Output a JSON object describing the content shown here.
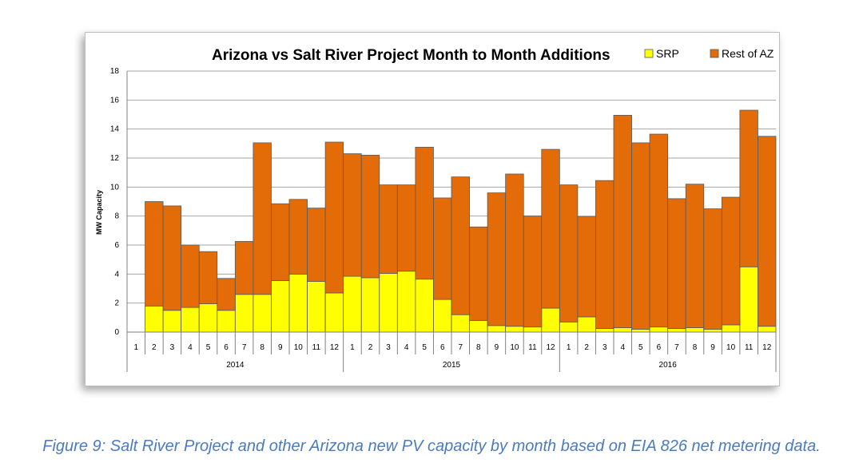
{
  "chart_data": {
    "type": "bar",
    "stacked": true,
    "title": "Arizona vs Salt River Project Month to Month Additions",
    "ylabel": "MW Capacity",
    "xlabel": "",
    "ylim": [
      0,
      18
    ],
    "yticks": [
      0,
      2,
      4,
      6,
      8,
      10,
      12,
      14,
      16,
      18
    ],
    "grid": "horizontal",
    "legend": "top-right",
    "years": [
      "2014",
      "2015",
      "2016"
    ],
    "categories": [
      "1",
      "2",
      "3",
      "4",
      "5",
      "6",
      "7",
      "8",
      "9",
      "10",
      "11",
      "12",
      "1",
      "2",
      "3",
      "4",
      "5",
      "6",
      "7",
      "8",
      "9",
      "10",
      "11",
      "12",
      "1",
      "2",
      "3",
      "4",
      "5",
      "6",
      "7",
      "8",
      "9",
      "10",
      "11",
      "12"
    ],
    "series": [
      {
        "name": "SRP",
        "color": "#ffff00",
        "values": [
          0,
          1.8,
          1.5,
          1.7,
          1.95,
          1.5,
          2.6,
          2.6,
          3.55,
          4.0,
          3.5,
          2.7,
          3.85,
          3.75,
          4.05,
          4.2,
          3.65,
          2.25,
          1.2,
          0.8,
          0.45,
          0.4,
          0.35,
          1.65,
          0.7,
          1.05,
          0.25,
          0.3,
          0.2,
          0.35,
          0.25,
          0.3,
          0.2,
          0.5,
          4.5,
          0.4
        ]
      },
      {
        "name": "Rest of AZ",
        "color": "#e36c09",
        "values": [
          0,
          7.2,
          7.2,
          4.3,
          3.6,
          2.2,
          3.65,
          10.45,
          5.3,
          5.15,
          5.05,
          10.4,
          8.45,
          8.45,
          6.1,
          5.95,
          9.1,
          7.0,
          9.5,
          6.45,
          9.15,
          10.5,
          7.65,
          10.95,
          9.45,
          6.9,
          10.2,
          14.65,
          12.85,
          13.3,
          8.95,
          9.9,
          8.3,
          8.8,
          10.8,
          13.1
        ]
      }
    ]
  },
  "caption": "Figure 9: Salt River Project and other Arizona new PV capacity by month based on EIA 826 net metering data."
}
